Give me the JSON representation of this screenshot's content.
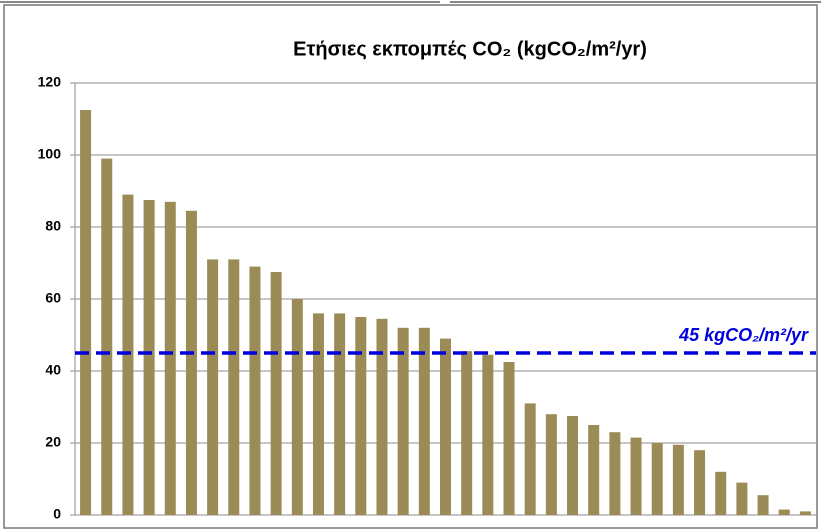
{
  "chart_data": {
    "type": "bar",
    "title": "Ετήσιες εκπομπές CO₂ (kgCO₂/m²/yr)",
    "categories": [
      null,
      null,
      null,
      null,
      null,
      null,
      null,
      null,
      null,
      null,
      null,
      null,
      null,
      null,
      null,
      null,
      null,
      null,
      null,
      null,
      null,
      null,
      null,
      null,
      null,
      null,
      null,
      null,
      null,
      null,
      null,
      null,
      null,
      null,
      null
    ],
    "values": [
      112.5,
      99,
      89,
      87.5,
      87,
      84.5,
      71,
      71,
      69,
      67.5,
      60,
      56,
      56,
      55,
      54.5,
      52,
      52,
      49,
      45.5,
      44.5,
      42.5,
      31,
      28,
      27.5,
      25,
      23,
      21.5,
      20,
      19.5,
      18,
      12,
      9,
      5.5,
      1.5,
      1
    ],
    "color": "#9b8b57",
    "ylim": [
      0,
      120
    ],
    "yticks": [
      0,
      20,
      40,
      60,
      80,
      100,
      120
    ],
    "grid": true,
    "reference_line": {
      "value": 45,
      "label": "45 kgCO₂/m²/yr",
      "color": "#0000dd"
    }
  }
}
